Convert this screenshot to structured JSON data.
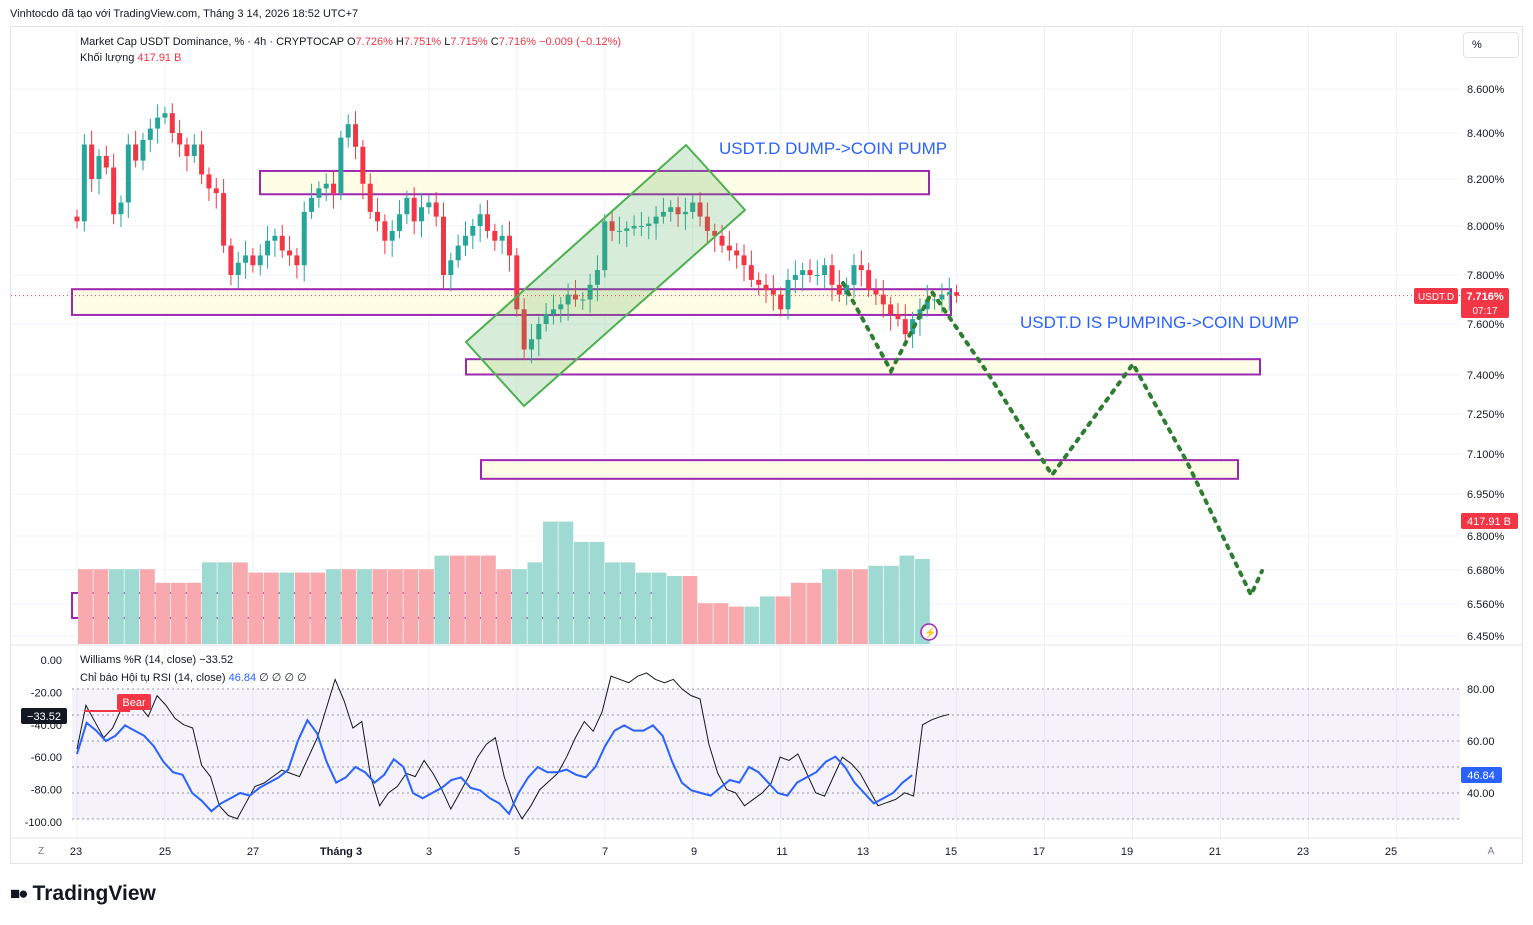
{
  "header": {
    "attribution": "Vinhtocdo đã tạo với TradingView.com, Tháng 3 14, 2026 18:52 UTC+7"
  },
  "legend": {
    "symbol": "Market Cap USDT Dominance, %",
    "interval": "4h",
    "source": "CRYPTOCAP",
    "o_label": "O",
    "o": "7.726%",
    "h_label": "H",
    "h": "7.751%",
    "l_label": "L",
    "l": "7.715%",
    "c_label": "C",
    "c": "7.716%",
    "change": "−0.009 (−0.12%)",
    "volume_label": "Khối lượng",
    "volume_value": "417.91 B"
  },
  "indicators": {
    "williams_label": "Williams %R (14, close)",
    "williams_value": "−33.52",
    "rsi_label": "Chỉ báo Hội tụ RSI (14, close)",
    "rsi_value": "46.84",
    "rsi_extra": "∅ ∅ ∅ ∅",
    "bear_label": "Bear"
  },
  "scale_button": "%",
  "price_tag": {
    "symbol": "USDT.D",
    "price": "7.716%",
    "countdown": "07:17",
    "volume": "417.91 B"
  },
  "williams_tag": "−33.52",
  "rsi_tag": "46.84",
  "annotations": {
    "dump_text": "USDT.D DUMP->COIN PUMP",
    "pump_text": "USDT.D IS PUMPING->COIN DUMP"
  },
  "footer": {
    "brand": "TradingView",
    "z_label": "Z",
    "a_label": "A"
  },
  "colors": {
    "up": "#26a69a",
    "down": "#f23645",
    "vol_up": "#9ed9d2",
    "vol_down": "#f7a9ae",
    "zone_border": "#9c27b0",
    "zone_fill": "#fffde5",
    "channel": "#4caf50",
    "projection": "#2e7d32",
    "rsi_line": "#2962ff",
    "annotation": "#2962ff"
  },
  "chart_data": {
    "type": "candlestick",
    "title": "Market Cap USDT Dominance, % · 4h · CRYPTOCAP",
    "price_axis": {
      "ticks": [
        8.6,
        8.4,
        8.2,
        8.0,
        7.8,
        7.6,
        7.4,
        7.25,
        7.1,
        6.95,
        6.8,
        6.68,
        6.56,
        6.45
      ],
      "labels": [
        "8.600%",
        "8.400%",
        "8.200%",
        "8.000%",
        "7.800%",
        "7.600%",
        "7.400%",
        "7.250%",
        "7.100%",
        "6.950%",
        "6.800%",
        "6.680%",
        "6.560%",
        "6.450%"
      ]
    },
    "time_axis": {
      "labels": [
        "23",
        "25",
        "27",
        "Tháng 3",
        "3",
        "5",
        "7",
        "9",
        "11",
        "13",
        "15",
        "17",
        "19",
        "21",
        "23",
        "25"
      ],
      "label_bars": [
        0,
        12,
        24,
        36,
        48,
        60,
        72,
        84,
        96,
        108,
        120,
        132,
        144,
        156,
        168,
        180
      ]
    },
    "closes": [
      8.02,
      8.35,
      8.2,
      8.3,
      8.25,
      8.05,
      8.1,
      8.35,
      8.28,
      8.37,
      8.42,
      8.47,
      8.49,
      8.4,
      8.35,
      8.3,
      8.35,
      8.22,
      8.16,
      8.14,
      7.92,
      7.8,
      7.85,
      7.88,
      7.84,
      7.88,
      7.94,
      7.96,
      7.9,
      7.88,
      7.84,
      8.06,
      8.12,
      8.16,
      8.18,
      8.14,
      8.38,
      8.44,
      8.34,
      8.18,
      8.06,
      8.02,
      7.94,
      7.98,
      8.05,
      8.12,
      8.02,
      8.08,
      8.1,
      8.04,
      7.8,
      7.86,
      7.92,
      7.96,
      8.0,
      8.05,
      7.98,
      7.94,
      7.96,
      7.88,
      7.66,
      7.5,
      7.54,
      7.6,
      7.64,
      7.66,
      7.68,
      7.72,
      7.7,
      7.7,
      7.76,
      7.82,
      8.02,
      7.98,
      7.98,
      7.99,
      8.0,
      8.0,
      8.01,
      8.04,
      8.06,
      8.08,
      8.05,
      8.06,
      8.1,
      8.04,
      7.98,
      7.96,
      7.92,
      7.9,
      7.88,
      7.84,
      7.78,
      7.76,
      7.74,
      7.72,
      7.66,
      7.78,
      7.8,
      7.82,
      7.8,
      7.8,
      7.84,
      7.76,
      7.72,
      7.76,
      7.84,
      7.82,
      7.74,
      7.72,
      7.68,
      7.64,
      7.62,
      7.56,
      7.62,
      7.66,
      7.7,
      7.7,
      7.72,
      7.73,
      7.716
    ],
    "volume_period_values_B": [
      400,
      400,
      400,
      400,
      400,
      380,
      380,
      380,
      410,
      410,
      410,
      395,
      395,
      395,
      395,
      395,
      400,
      400,
      400,
      400,
      400,
      400,
      400,
      420,
      420,
      420,
      420,
      400,
      400,
      410,
      470,
      470,
      440,
      440,
      410,
      410,
      395,
      395,
      390,
      390,
      350,
      350,
      345,
      345,
      360,
      360,
      380,
      380,
      400,
      400,
      400,
      405,
      405,
      420,
      415
    ],
    "williams_r": [
      -55,
      -28,
      -38,
      -48,
      -42,
      -30,
      -30,
      -28,
      -35,
      -22,
      -28,
      -36,
      -40,
      -42,
      -65,
      -72,
      -90,
      -96,
      -98,
      -88,
      -78,
      -76,
      -72,
      -68,
      -70,
      -72,
      -60,
      -48,
      -30,
      -12,
      -25,
      -42,
      -38,
      -72,
      -90,
      -82,
      -78,
      -70,
      -72,
      -62,
      -70,
      -80,
      -92,
      -82,
      -72,
      -60,
      -52,
      -48,
      -72,
      -88,
      -98,
      -90,
      -80,
      -75,
      -70,
      -60,
      -48,
      -38,
      -44,
      -32,
      -10,
      -12,
      -14,
      -10,
      -8,
      -12,
      -14,
      -12,
      -18,
      -22,
      -24,
      -52,
      -70,
      -80,
      -82,
      -90,
      -86,
      -82,
      -76,
      -60,
      -62,
      -58,
      -70,
      -82,
      -84,
      -72,
      -60,
      -64,
      -70,
      -80,
      -90,
      -88,
      -86,
      -82,
      -84,
      -40,
      -37,
      -35,
      -33.52
    ],
    "rsi": [
      55,
      67,
      64,
      60,
      62,
      66,
      64,
      62,
      58,
      52,
      48,
      47,
      40,
      37,
      33,
      36,
      38,
      40,
      39,
      42,
      44,
      46,
      49,
      60,
      68,
      63,
      52,
      44,
      46,
      50,
      48,
      44,
      47,
      53,
      50,
      40,
      38,
      40,
      42,
      45,
      46,
      42,
      41,
      38,
      36,
      32,
      40,
      46,
      50,
      48,
      48,
      49,
      47,
      46,
      50,
      58,
      64,
      66,
      64,
      64,
      66,
      62,
      52,
      44,
      41,
      40,
      39,
      42,
      45,
      44,
      50,
      48,
      44,
      40,
      39,
      44,
      46,
      48,
      52,
      54,
      50,
      44,
      40,
      36,
      38,
      40,
      44,
      46.84
    ],
    "rsi_levels": [
      80,
      70,
      60,
      50,
      40,
      30
    ],
    "williams_axis": [
      0,
      -20,
      -40,
      -60,
      -80,
      -100
    ]
  }
}
